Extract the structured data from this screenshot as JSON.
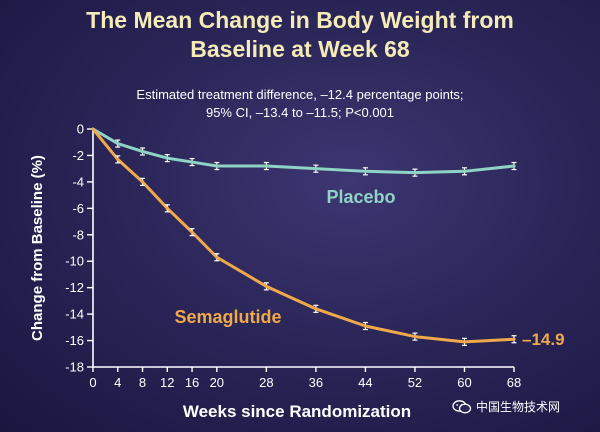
{
  "chart_data": {
    "type": "line",
    "title_line1": "The Mean Change in Body Weight from",
    "title_line2": "Baseline at Week 68",
    "subtitle_line1": "Estimated treatment difference, –12.4 percentage points;",
    "subtitle_line2": "95% CI, –13.4 to –11.5; P<0.001",
    "xlabel": "Weeks since Randomization",
    "ylabel": "Change from Baseline (%)",
    "xlim": [
      0,
      68
    ],
    "ylim": [
      -18,
      0
    ],
    "x_ticks": [
      "0",
      "4",
      "8",
      "12",
      "16",
      "20",
      "28",
      "36",
      "44",
      "52",
      "60",
      "68"
    ],
    "x_tick_values": [
      0,
      4,
      8,
      12,
      16,
      20,
      28,
      36,
      44,
      52,
      60,
      68
    ],
    "y_ticks": [
      "0",
      "-2",
      "-4",
      "-6",
      "-8",
      "-10",
      "-12",
      "-14",
      "-16",
      "-18"
    ],
    "y_tick_values": [
      0,
      -2,
      -4,
      -6,
      -8,
      -10,
      -12,
      -14,
      -16,
      -18
    ],
    "series": [
      {
        "name": "Placebo",
        "color": "#8fd3c4",
        "x": [
          0,
          4,
          8,
          12,
          16,
          20,
          28,
          36,
          44,
          52,
          60,
          68
        ],
        "values": [
          0,
          -1.1,
          -1.7,
          -2.2,
          -2.5,
          -2.8,
          -2.8,
          -3.0,
          -3.2,
          -3.3,
          -3.2,
          -2.8
        ]
      },
      {
        "name": "Semaglutide",
        "color": "#f0a94a",
        "x": [
          0,
          4,
          8,
          12,
          16,
          20,
          28,
          36,
          44,
          52,
          60,
          68
        ],
        "values": [
          0,
          -2.3,
          -4.0,
          -6.0,
          -7.8,
          -9.7,
          -11.9,
          -13.6,
          -14.9,
          -15.7,
          -16.1,
          -15.9
        ]
      }
    ],
    "annotations": [
      {
        "text": "–14.9",
        "series": "Semaglutide",
        "color": "#f0a94a"
      }
    ]
  },
  "watermark": {
    "icon": "wechat-icon",
    "text": "中国生物技术网"
  }
}
